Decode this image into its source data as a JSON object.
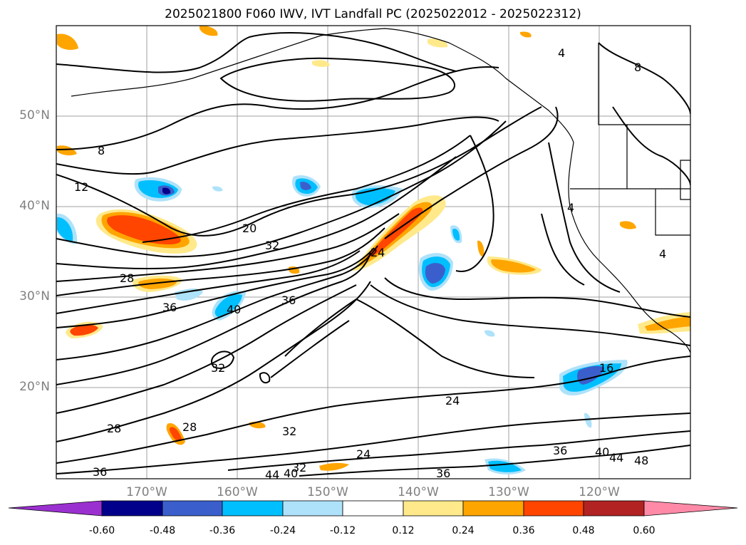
{
  "title": "2025021800 F060 IWV, IVT Landfall PC (2025022012 - 2025022312)",
  "lat_labels": [
    "50°N",
    "40°N",
    "30°N",
    "20°N"
  ],
  "lon_labels": [
    "170°W",
    "160°W",
    "150°W",
    "140°W",
    "130°W",
    "120°W"
  ],
  "colorbar": {
    "ticks": [
      "-0.60",
      "-0.48",
      "-0.36",
      "-0.24",
      "-0.12",
      "0.12",
      "0.24",
      "0.36",
      "0.48",
      "0.60"
    ],
    "colors": [
      "#9b30d0",
      "#00008b",
      "#3a5fcd",
      "#00bfff",
      "#aee2fa",
      "#ffffff",
      "#ffe98a",
      "#ffa500",
      "#ff4500",
      "#b22222",
      "#ff8aa8"
    ]
  },
  "contour_labels": [
    "8",
    "12",
    "20",
    "32",
    "28",
    "36",
    "40",
    "24",
    "16",
    "44",
    "48",
    "4"
  ]
}
